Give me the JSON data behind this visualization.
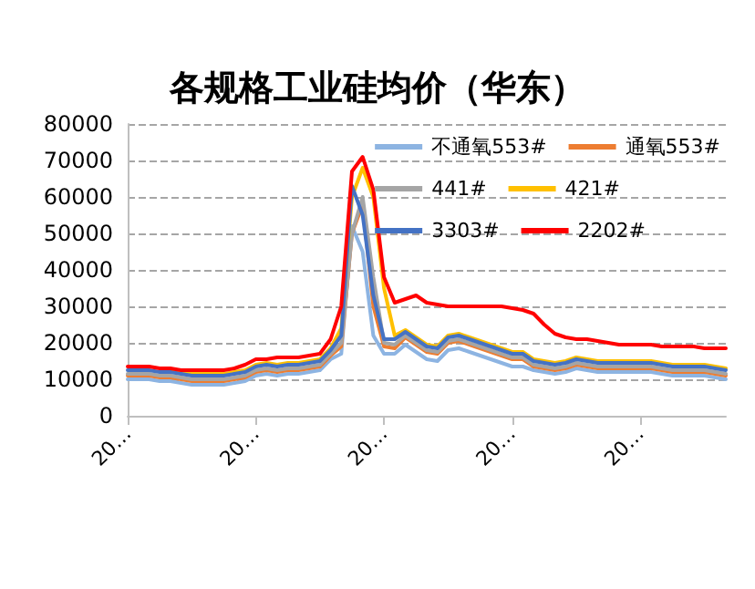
{
  "chart_data": {
    "type": "line",
    "title": "各规格工业硅均价（华东）",
    "categories": [
      "20…",
      null,
      null,
      null,
      null,
      null,
      null,
      null,
      null,
      null,
      null,
      null,
      "20…",
      null,
      null,
      null,
      null,
      null,
      null,
      null,
      null,
      null,
      null,
      null,
      "20…",
      null,
      null,
      null,
      null,
      null,
      null,
      null,
      null,
      null,
      null,
      null,
      "20…",
      null,
      null,
      null,
      null,
      null,
      null,
      null,
      null,
      null,
      null,
      null,
      "20…",
      null,
      null,
      null,
      null,
      null,
      null,
      null,
      null
    ],
    "ylim": [
      0,
      80000
    ],
    "yticks": [
      0,
      10000,
      20000,
      30000,
      40000,
      50000,
      60000,
      70000,
      80000
    ],
    "grid": "y",
    "legend": "top right",
    "marker": "none",
    "line_style": "solid",
    "series": [
      {
        "name": "不通氧553#",
        "color": "#8db4e2",
        "values": [
          10000,
          10000,
          10000,
          9500,
          9500,
          9000,
          8500,
          8500,
          8500,
          8500,
          9000,
          9500,
          11000,
          11500,
          11000,
          11500,
          11500,
          12000,
          12500,
          15500,
          17000,
          52000,
          45000,
          22000,
          17000,
          17000,
          19500,
          17500,
          15500,
          15000,
          18000,
          18500,
          17500,
          16500,
          15500,
          14500,
          13500,
          13500,
          12500,
          12000,
          11500,
          12000,
          13000,
          12500,
          12000,
          12000,
          12000,
          12000,
          12000,
          12000,
          11500,
          11000,
          11000,
          11000,
          11000,
          10500,
          10000
        ]
      },
      {
        "name": "通氧553#",
        "color": "#ed7d31",
        "values": [
          11000,
          11000,
          11000,
          10500,
          10500,
          10000,
          9500,
          9500,
          9500,
          9500,
          10000,
          10500,
          12000,
          12500,
          12000,
          12500,
          12500,
          13000,
          13500,
          16500,
          19000,
          50000,
          58000,
          30000,
          19000,
          18500,
          21500,
          19500,
          17500,
          17000,
          20000,
          20500,
          19500,
          18500,
          17500,
          16500,
          15500,
          15500,
          13500,
          13000,
          12500,
          13000,
          14000,
          13500,
          13000,
          13000,
          13000,
          13000,
          13000,
          13000,
          12500,
          12000,
          12000,
          12000,
          12000,
          11500,
          11000
        ]
      },
      {
        "name": "441#",
        "color": "#a5a5a5",
        "values": [
          11500,
          11500,
          11500,
          11000,
          11000,
          10500,
          10000,
          10000,
          10000,
          10000,
          10500,
          11000,
          12500,
          13000,
          12500,
          13000,
          13000,
          13500,
          14000,
          17000,
          20000,
          50000,
          60000,
          38000,
          20000,
          19500,
          22000,
          20000,
          18000,
          17500,
          20500,
          21000,
          20000,
          19000,
          18000,
          17000,
          16000,
          16000,
          14000,
          13500,
          13000,
          13500,
          14500,
          14000,
          13500,
          13500,
          13500,
          13500,
          13500,
          13500,
          13000,
          12500,
          12500,
          12500,
          12500,
          12000,
          11500
        ]
      },
      {
        "name": "421#",
        "color": "#ffc000",
        "values": [
          null,
          null,
          null,
          null,
          12500,
          12000,
          11500,
          11500,
          11500,
          11500,
          12000,
          12500,
          14000,
          14500,
          14000,
          14500,
          14500,
          15000,
          15500,
          18500,
          24000,
          60000,
          68000,
          60000,
          35000,
          22000,
          23500,
          21500,
          19500,
          19000,
          22000,
          22500,
          21500,
          20500,
          19500,
          18500,
          17500,
          17500,
          15500,
          15000,
          14500,
          15000,
          16000,
          15500,
          15000,
          15000,
          15000,
          15000,
          15000,
          15000,
          14500,
          14000,
          14000,
          14000,
          14000,
          13500,
          13000
        ]
      },
      {
        "name": "3303#",
        "color": "#4472c4",
        "values": [
          12500,
          12500,
          12500,
          12000,
          12000,
          11500,
          11000,
          11000,
          11000,
          11000,
          11500,
          12000,
          13500,
          14000,
          13500,
          14000,
          14000,
          14500,
          15000,
          18000,
          22000,
          63000,
          55000,
          33000,
          21000,
          21000,
          23000,
          21000,
          19000,
          18500,
          21500,
          22000,
          21000,
          20000,
          19000,
          18000,
          17000,
          17000,
          15000,
          14500,
          14000,
          14500,
          15500,
          15000,
          14500,
          14500,
          14500,
          14500,
          14500,
          14500,
          14000,
          13500,
          13500,
          13500,
          13500,
          13000,
          12500
        ]
      },
      {
        "name": "2202#",
        "color": "#ff0000",
        "values": [
          13500,
          13500,
          13500,
          13000,
          13000,
          12500,
          12500,
          12500,
          12500,
          12500,
          13000,
          14000,
          15500,
          15500,
          16000,
          16000,
          16000,
          16500,
          17000,
          21000,
          30000,
          67000,
          71000,
          62000,
          38000,
          31000,
          32000,
          33000,
          31000,
          30500,
          30000,
          30000,
          30000,
          30000,
          30000,
          30000,
          29500,
          29000,
          28000,
          25000,
          22500,
          21500,
          21000,
          21000,
          20500,
          20000,
          19500,
          19500,
          19500,
          19500,
          19000,
          19000,
          19000,
          19000,
          18500,
          18500,
          18500
        ]
      }
    ]
  }
}
